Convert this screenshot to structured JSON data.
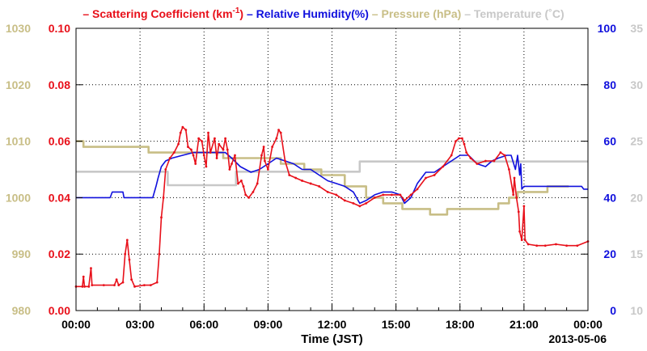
{
  "chart_data": {
    "type": "line",
    "legend": [
      {
        "prefix": "– ",
        "text": "Scattering Coefficient (km",
        "sup": "-1",
        "suffix": ")",
        "color": "#e8101a"
      },
      {
        "prefix": "– ",
        "text": "Relative Humidity(%)",
        "color": "#1010dd"
      },
      {
        "prefix": "– ",
        "text": "Pressure (hPa)",
        "color": "#c8be86"
      },
      {
        "prefix": "– ",
        "text": "Temperature (˚C)",
        "color": "#c8c8c8"
      }
    ],
    "xlabel": "Time (JST)",
    "date_label": "2013-05-06",
    "x_ticks": [
      "00:00",
      "03:00",
      "06:00",
      "09:00",
      "12:00",
      "15:00",
      "18:00",
      "21:00",
      "00:00"
    ],
    "x_tick_hours": [
      0,
      3,
      6,
      9,
      12,
      15,
      18,
      21,
      24
    ],
    "xlim": [
      0,
      24
    ],
    "grid": true,
    "axes": {
      "scattering": {
        "side": "left-inner",
        "color": "#e8101a",
        "ylim": [
          0,
          0.1
        ],
        "ticks": [
          "0.00",
          "0.02",
          "0.04",
          "0.06",
          "0.08",
          "0.10"
        ]
      },
      "pressure": {
        "side": "left-outer",
        "color": "#c8be86",
        "ylim": [
          980,
          1030
        ],
        "ticks": [
          "980",
          "990",
          "1000",
          "1010",
          "1020",
          "1030"
        ]
      },
      "humidity": {
        "side": "right-inner",
        "color": "#1010dd",
        "ylim": [
          0,
          100
        ],
        "ticks": [
          "0",
          "20",
          "40",
          "60",
          "80",
          "100"
        ]
      },
      "temperature": {
        "side": "right-outer",
        "color": "#c8c8c8",
        "ylim": [
          10,
          35
        ],
        "ticks": [
          "10",
          "15",
          "20",
          "25",
          "30",
          "35"
        ]
      }
    },
    "series": [
      {
        "name": "Temperature",
        "axis": "temperature",
        "color": "#c8c8c8",
        "step": true,
        "points": [
          [
            0,
            22.3
          ],
          [
            4.2,
            22.3
          ],
          [
            4.3,
            21.1
          ],
          [
            7.3,
            21.1
          ],
          [
            7.5,
            22.3
          ],
          [
            13.2,
            22.3
          ],
          [
            13.3,
            23.2
          ],
          [
            24,
            23.2
          ]
        ]
      },
      {
        "name": "Pressure",
        "axis": "pressure",
        "color": "#c8be86",
        "step": true,
        "points": [
          [
            0,
            1010
          ],
          [
            0.35,
            1009
          ],
          [
            3.3,
            1009
          ],
          [
            3.4,
            1008
          ],
          [
            6.8,
            1008
          ],
          [
            6.9,
            1007
          ],
          [
            9.5,
            1007
          ],
          [
            9.6,
            1006
          ],
          [
            10.6,
            1006
          ],
          [
            10.7,
            1005
          ],
          [
            11.4,
            1005
          ],
          [
            11.5,
            1004
          ],
          [
            12.5,
            1004
          ],
          [
            12.6,
            1002
          ],
          [
            13.5,
            1002
          ],
          [
            13.6,
            1000
          ],
          [
            14.3,
            1000
          ],
          [
            14.4,
            999
          ],
          [
            15.2,
            999
          ],
          [
            15.3,
            998
          ],
          [
            16.5,
            998
          ],
          [
            16.6,
            997
          ],
          [
            17.3,
            997
          ],
          [
            17.4,
            998
          ],
          [
            19.7,
            998
          ],
          [
            19.8,
            999
          ],
          [
            20.2,
            999
          ],
          [
            20.3,
            1000
          ],
          [
            20.6,
            1000
          ],
          [
            20.7,
            1001
          ],
          [
            22.0,
            1001
          ],
          [
            22.1,
            1002
          ],
          [
            23.1,
            1002
          ]
        ]
      },
      {
        "name": "Relative Humidity",
        "axis": "humidity",
        "color": "#1010dd",
        "step": false,
        "points": [
          [
            0,
            40
          ],
          [
            1.6,
            40
          ],
          [
            1.7,
            42
          ],
          [
            2.2,
            42
          ],
          [
            2.25,
            40
          ],
          [
            3.6,
            40
          ],
          [
            3.75,
            44
          ],
          [
            3.85,
            47
          ],
          [
            4.0,
            51
          ],
          [
            4.2,
            53
          ],
          [
            4.5,
            54
          ],
          [
            5.0,
            55
          ],
          [
            5.5,
            56
          ],
          [
            6.0,
            56
          ],
          [
            6.5,
            56
          ],
          [
            7.0,
            56
          ],
          [
            7.3,
            54
          ],
          [
            7.7,
            51
          ],
          [
            8.2,
            49
          ],
          [
            8.6,
            50
          ],
          [
            9.0,
            52
          ],
          [
            9.4,
            54
          ],
          [
            9.8,
            53
          ],
          [
            10.2,
            52
          ],
          [
            10.6,
            50
          ],
          [
            11.0,
            50
          ],
          [
            11.4,
            48
          ],
          [
            11.8,
            46
          ],
          [
            12.2,
            45
          ],
          [
            12.6,
            44
          ],
          [
            13.0,
            42
          ],
          [
            13.3,
            38
          ],
          [
            13.6,
            39
          ],
          [
            14.0,
            41
          ],
          [
            14.4,
            42
          ],
          [
            14.8,
            42
          ],
          [
            15.2,
            41
          ],
          [
            15.4,
            38
          ],
          [
            15.7,
            40
          ],
          [
            16.0,
            45
          ],
          [
            16.4,
            49
          ],
          [
            16.8,
            49
          ],
          [
            17.2,
            51
          ],
          [
            17.6,
            53
          ],
          [
            18.0,
            55
          ],
          [
            18.4,
            55
          ],
          [
            18.8,
            52
          ],
          [
            19.2,
            51
          ],
          [
            19.5,
            53
          ],
          [
            19.8,
            54
          ],
          [
            20.2,
            55
          ],
          [
            20.4,
            55
          ],
          [
            20.6,
            50
          ],
          [
            20.7,
            55
          ],
          [
            20.8,
            48
          ],
          [
            20.85,
            52
          ],
          [
            20.9,
            43
          ],
          [
            21.0,
            44
          ],
          [
            21.5,
            44
          ],
          [
            22.0,
            44
          ],
          [
            23.0,
            44
          ],
          [
            23.7,
            44
          ],
          [
            23.8,
            43
          ],
          [
            24,
            43
          ]
        ]
      },
      {
        "name": "Scattering Coefficient",
        "axis": "scattering",
        "color": "#e8101a",
        "step": false,
        "points": [
          [
            0,
            0.0085
          ],
          [
            0.3,
            0.0085
          ],
          [
            0.35,
            0.012
          ],
          [
            0.4,
            0.0085
          ],
          [
            0.6,
            0.0085
          ],
          [
            0.7,
            0.015
          ],
          [
            0.75,
            0.009
          ],
          [
            1.3,
            0.009
          ],
          [
            1.8,
            0.009
          ],
          [
            1.9,
            0.011
          ],
          [
            2.0,
            0.009
          ],
          [
            2.2,
            0.01
          ],
          [
            2.3,
            0.02
          ],
          [
            2.4,
            0.025
          ],
          [
            2.5,
            0.018
          ],
          [
            2.6,
            0.011
          ],
          [
            2.75,
            0.0085
          ],
          [
            3.2,
            0.009
          ],
          [
            3.5,
            0.009
          ],
          [
            3.8,
            0.01
          ],
          [
            3.9,
            0.02
          ],
          [
            4.0,
            0.033
          ],
          [
            4.1,
            0.04
          ],
          [
            4.2,
            0.05
          ],
          [
            4.4,
            0.054
          ],
          [
            4.6,
            0.056
          ],
          [
            4.8,
            0.059
          ],
          [
            4.9,
            0.063
          ],
          [
            5.0,
            0.065
          ],
          [
            5.15,
            0.064
          ],
          [
            5.25,
            0.058
          ],
          [
            5.4,
            0.057
          ],
          [
            5.5,
            0.055
          ],
          [
            5.6,
            0.052
          ],
          [
            5.75,
            0.061
          ],
          [
            5.9,
            0.06
          ],
          [
            6.0,
            0.055
          ],
          [
            6.1,
            0.051
          ],
          [
            6.2,
            0.063
          ],
          [
            6.3,
            0.056
          ],
          [
            6.5,
            0.061
          ],
          [
            6.6,
            0.054
          ],
          [
            6.7,
            0.059
          ],
          [
            6.9,
            0.057
          ],
          [
            7.0,
            0.061
          ],
          [
            7.1,
            0.057
          ],
          [
            7.2,
            0.05
          ],
          [
            7.3,
            0.052
          ],
          [
            7.45,
            0.055
          ],
          [
            7.6,
            0.045
          ],
          [
            7.75,
            0.046
          ],
          [
            7.85,
            0.044
          ],
          [
            7.95,
            0.041
          ],
          [
            8.1,
            0.04
          ],
          [
            8.3,
            0.042
          ],
          [
            8.5,
            0.045
          ],
          [
            8.7,
            0.055
          ],
          [
            8.8,
            0.058
          ],
          [
            8.85,
            0.053
          ],
          [
            9.0,
            0.05
          ],
          [
            9.2,
            0.058
          ],
          [
            9.4,
            0.061
          ],
          [
            9.5,
            0.064
          ],
          [
            9.6,
            0.063
          ],
          [
            9.8,
            0.053
          ],
          [
            10.0,
            0.048
          ],
          [
            10.3,
            0.047
          ],
          [
            10.6,
            0.046
          ],
          [
            11.0,
            0.045
          ],
          [
            11.4,
            0.044
          ],
          [
            11.8,
            0.042
          ],
          [
            12.2,
            0.041
          ],
          [
            12.6,
            0.039
          ],
          [
            13.0,
            0.038
          ],
          [
            13.3,
            0.037
          ],
          [
            13.6,
            0.038
          ],
          [
            14.0,
            0.04
          ],
          [
            14.4,
            0.041
          ],
          [
            14.8,
            0.041
          ],
          [
            15.2,
            0.041
          ],
          [
            15.4,
            0.039
          ],
          [
            15.7,
            0.041
          ],
          [
            16.0,
            0.043
          ],
          [
            16.4,
            0.047
          ],
          [
            16.8,
            0.048
          ],
          [
            17.2,
            0.051
          ],
          [
            17.6,
            0.055
          ],
          [
            17.8,
            0.06
          ],
          [
            17.95,
            0.061
          ],
          [
            18.1,
            0.061
          ],
          [
            18.2,
            0.059
          ],
          [
            18.3,
            0.056
          ],
          [
            18.5,
            0.054
          ],
          [
            18.8,
            0.052
          ],
          [
            19.2,
            0.053
          ],
          [
            19.6,
            0.053
          ],
          [
            19.9,
            0.056
          ],
          [
            20.1,
            0.055
          ],
          [
            20.3,
            0.05
          ],
          [
            20.5,
            0.041
          ],
          [
            20.55,
            0.047
          ],
          [
            20.65,
            0.04
          ],
          [
            20.75,
            0.035
          ],
          [
            20.8,
            0.028
          ],
          [
            20.9,
            0.025
          ],
          [
            21.0,
            0.037
          ],
          [
            21.05,
            0.025
          ],
          [
            21.2,
            0.0235
          ],
          [
            21.6,
            0.023
          ],
          [
            22.0,
            0.023
          ],
          [
            22.5,
            0.0235
          ],
          [
            23.0,
            0.023
          ],
          [
            23.5,
            0.023
          ],
          [
            24,
            0.0245
          ]
        ]
      }
    ]
  }
}
